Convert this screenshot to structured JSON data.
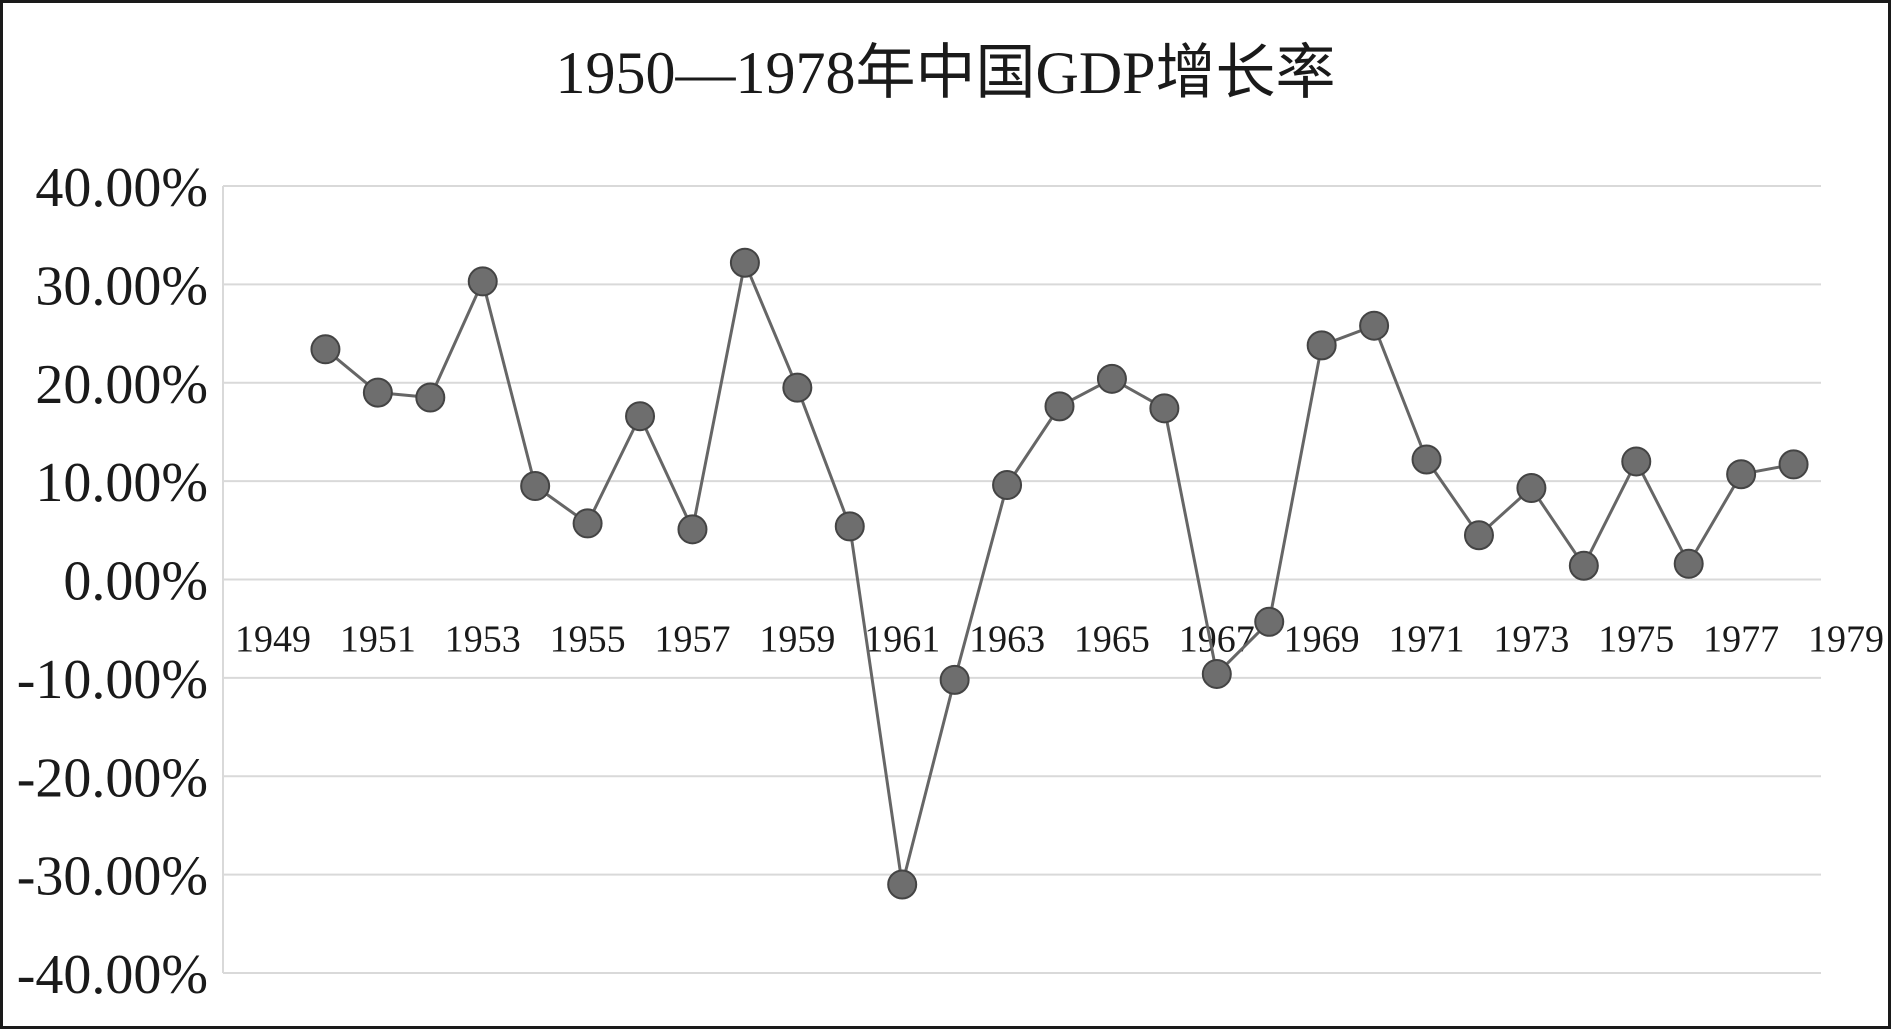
{
  "chart_data": {
    "type": "line",
    "title": "1950—1978年中国GDP增长率",
    "xlabel": "",
    "ylabel": "",
    "x_tick_labels": [
      "1949",
      "1951",
      "1953",
      "1955",
      "1957",
      "1959",
      "1961",
      "1963",
      "1965",
      "1967",
      "1969",
      "1971",
      "1973",
      "1975",
      "1977",
      "1979"
    ],
    "y_tick_labels": [
      "40.00%",
      "30.00%",
      "20.00%",
      "10.00%",
      "0.00%",
      "-10.00%",
      "-20.00%",
      "-30.00%",
      "-40.00%"
    ],
    "xlim": [
      1949,
      1979
    ],
    "ylim": [
      -40,
      40
    ],
    "grid": true,
    "legend": "none",
    "colors": {
      "line": "#666666",
      "marker": "#6e6e6e",
      "grid": "#d9d9d9",
      "text": "#1a1a1a"
    },
    "series": [
      {
        "x": [
          1950,
          1951,
          1952,
          1953,
          1954,
          1955,
          1956,
          1957,
          1958,
          1959,
          1960,
          1961,
          1962,
          1963,
          1964,
          1965,
          1966,
          1967,
          1968,
          1969,
          1970,
          1971,
          1972,
          1973,
          1974,
          1975,
          1976,
          1977,
          1978
        ],
        "values": [
          23.4,
          19.0,
          18.5,
          30.3,
          9.5,
          5.7,
          16.6,
          5.1,
          32.2,
          19.5,
          5.4,
          -31.0,
          -10.2,
          9.6,
          17.6,
          20.4,
          17.4,
          -9.6,
          -4.3,
          23.8,
          25.8,
          12.2,
          4.5,
          9.3,
          1.4,
          12.0,
          1.6,
          10.7,
          11.7
        ]
      }
    ]
  }
}
